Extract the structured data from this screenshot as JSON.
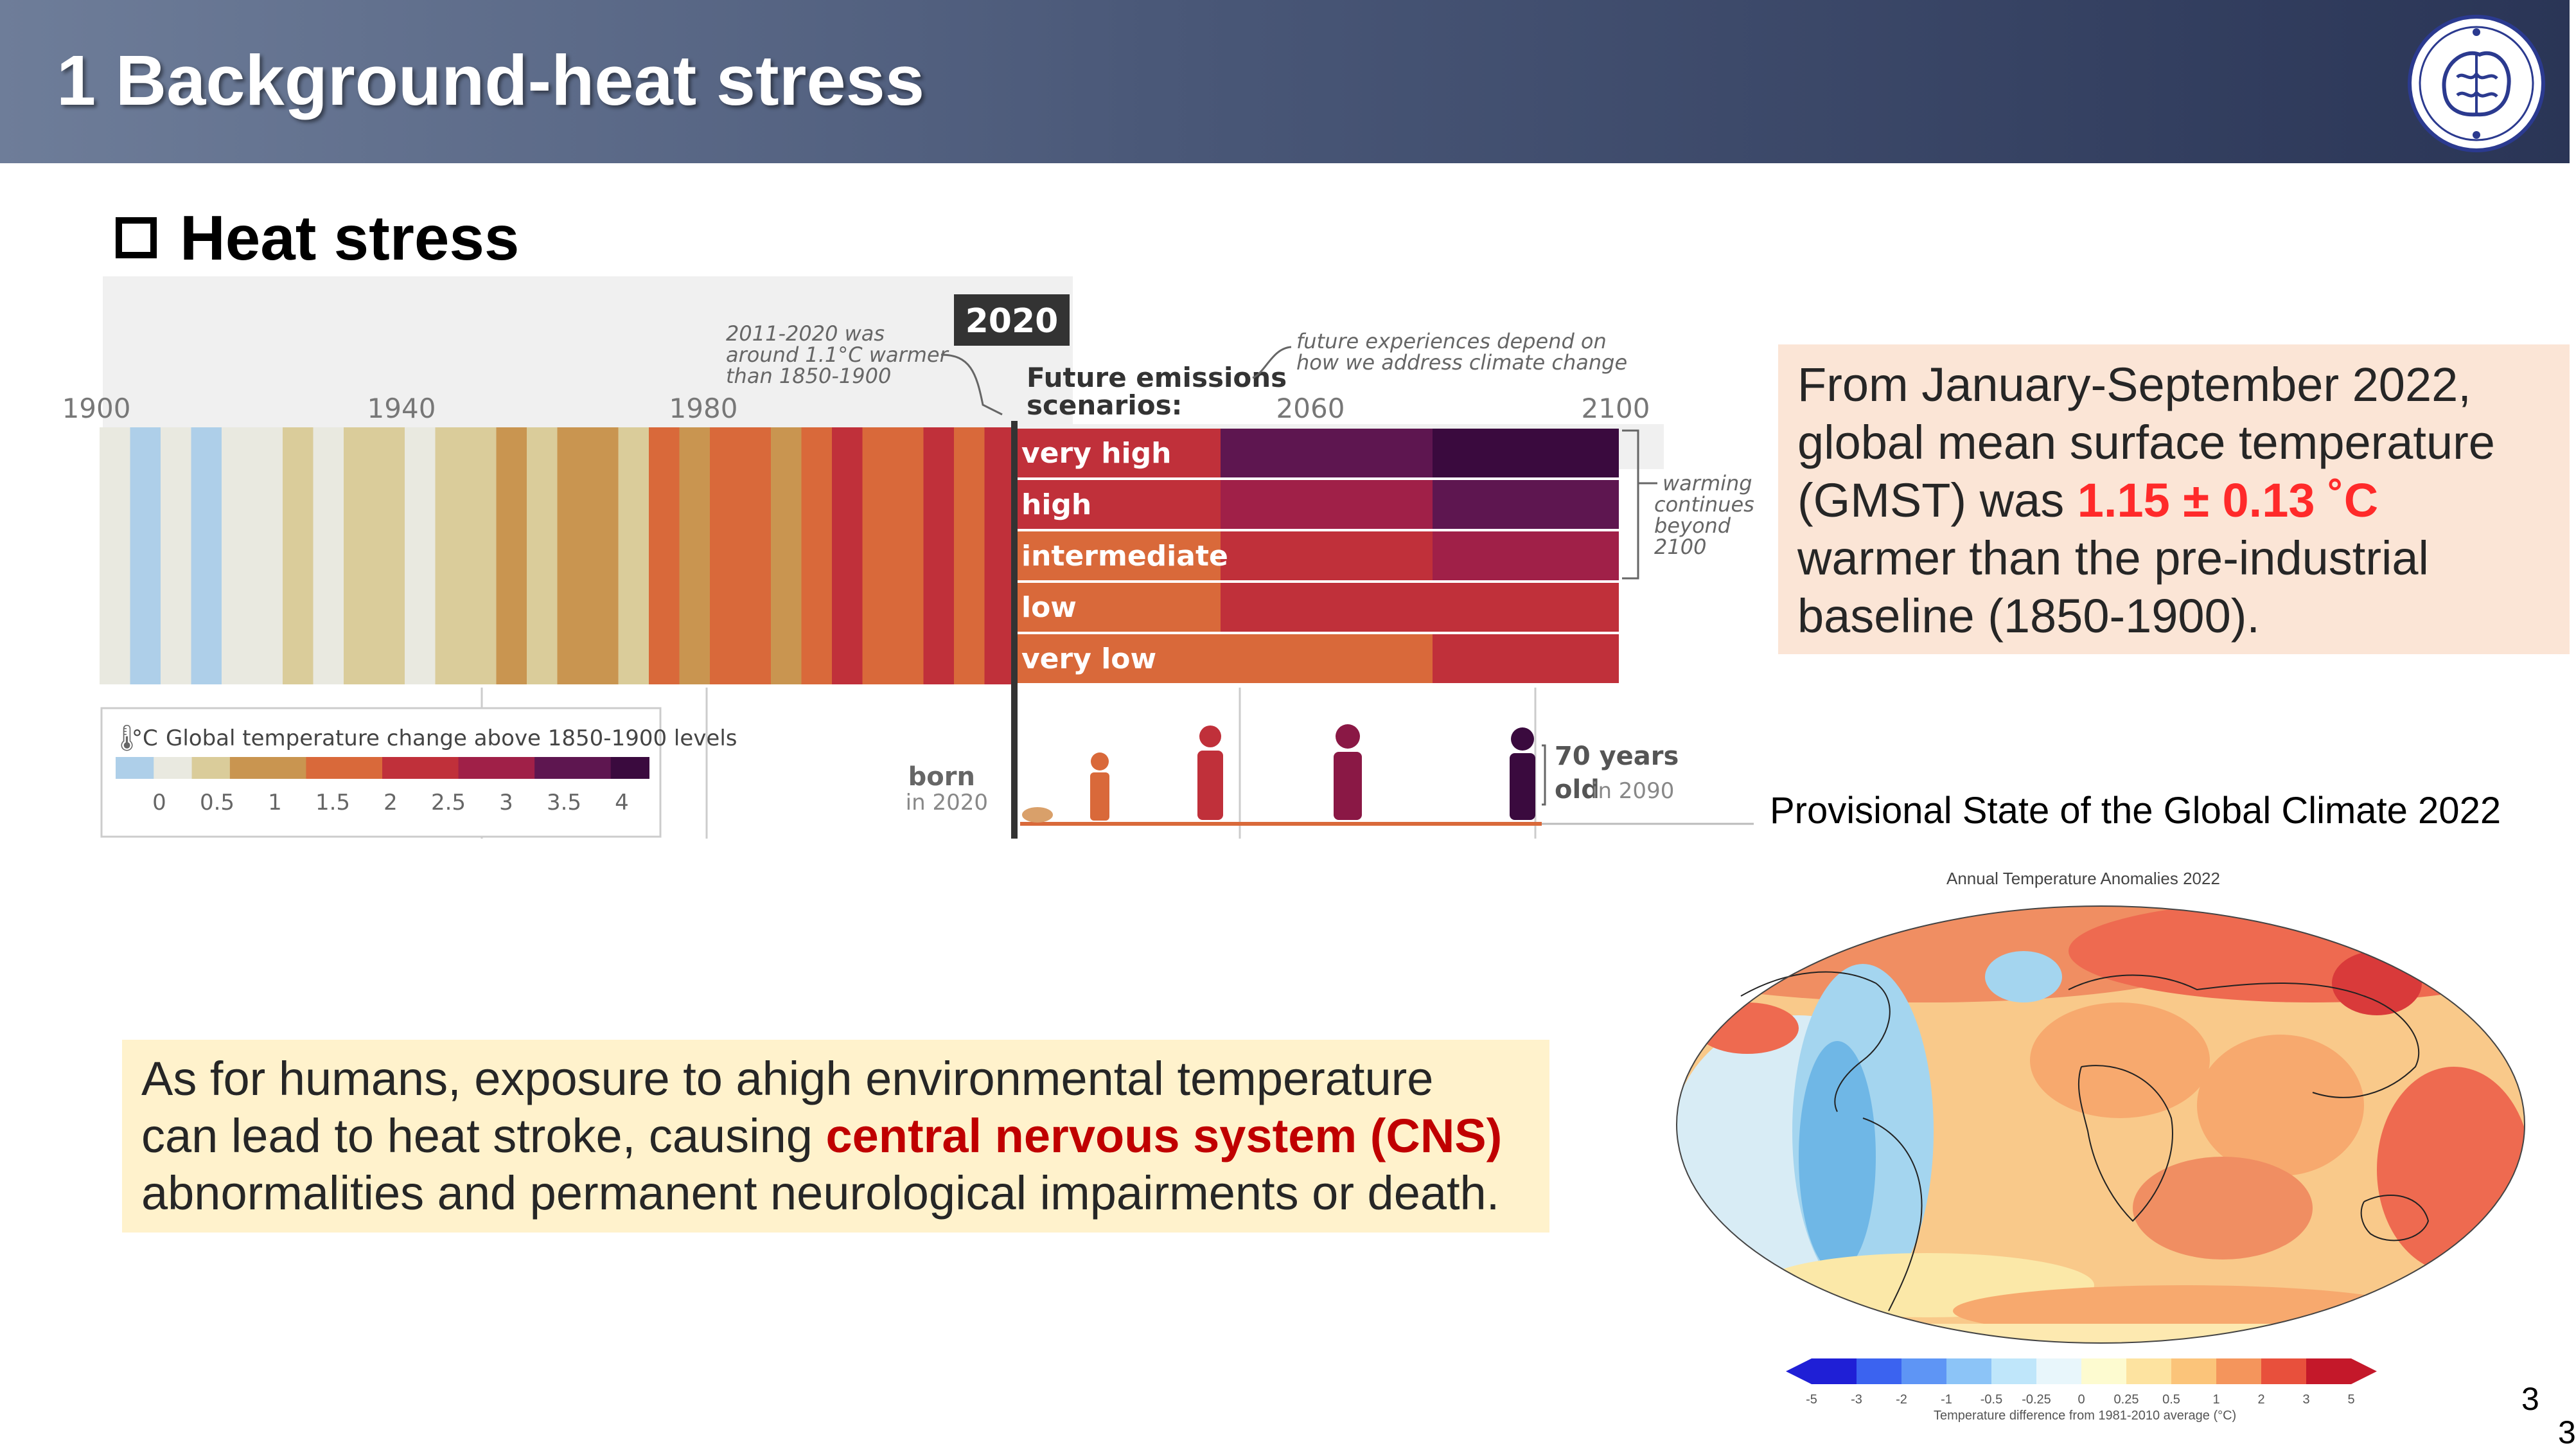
{
  "slide": {
    "title": "1 Background-heat stress",
    "subtitle": "Heat stress",
    "page_number": "3",
    "page_number_2": "3"
  },
  "infographic": {
    "years": [
      "1900",
      "1940",
      "1980",
      "2020",
      "2060",
      "2100"
    ],
    "note_left": [
      "2011-2020 was",
      "around 1.1°C warmer",
      "than 1850-1900"
    ],
    "future_heading": [
      "Future emissions",
      "scenarios:"
    ],
    "note_right": [
      "future experiences depend on",
      "how we address climate change"
    ],
    "scenarios": [
      "very high",
      "high",
      "intermediate",
      "low",
      "very low"
    ],
    "warming_note": [
      "warming",
      "continues",
      "beyond",
      "2100"
    ],
    "legend_title": "Global temperature change above 1850-1900 levels",
    "legend_unit": "°C",
    "legend_ticks": [
      "0",
      "0.5",
      "1",
      "1.5",
      "2",
      "2.5",
      "3",
      "3.5",
      "4"
    ],
    "born_label": "born",
    "born_sub": "in 2020",
    "old_label_1": "70 years",
    "old_label_2": "old",
    "old_sub": "in 2090",
    "colors": {
      "cool": "#aecfe9",
      "neutral": "#e9e9e0",
      "warm_low": "#dacc9a",
      "warm_mid": "#c99550",
      "orange": "#d9693a",
      "red": "#c0303a",
      "crimson": "#a02048",
      "purple": "#5e1650",
      "dark": "#3a0a3e"
    }
  },
  "gmst_box": {
    "line1": "From January-September 2022,",
    "line2": "global mean surface temperature",
    "line3_pre": "(GMST) was ",
    "line3_hl": "1.15 ± 0.13 ˚C",
    "line4": "warmer than the pre-industrial",
    "line5": "baseline (1850-1900).",
    "highlight_color": "#ff2a2a"
  },
  "map_panel": {
    "caption": "Provisional State of the Global Climate 2022",
    "map_title": "Annual Temperature Anomalies 2022",
    "colorbar_ticks": [
      "-5",
      "-3",
      "-2",
      "-1",
      "-0.5",
      "-0.25",
      "0",
      "0.25",
      "0.5",
      "1",
      "2",
      "3",
      "5"
    ],
    "colorbar_label": "Temperature difference from 1981-2010 average (°C)"
  },
  "cns_box": {
    "line1": "As for humans, exposure to ahigh environmental temperature",
    "line2_pre": "can lead to heat stroke, causing ",
    "line2_hl": "central nervous system (CNS)",
    "line3": "abnormalities and permanent neurological impairments or death.",
    "highlight_color": "#c00000"
  }
}
